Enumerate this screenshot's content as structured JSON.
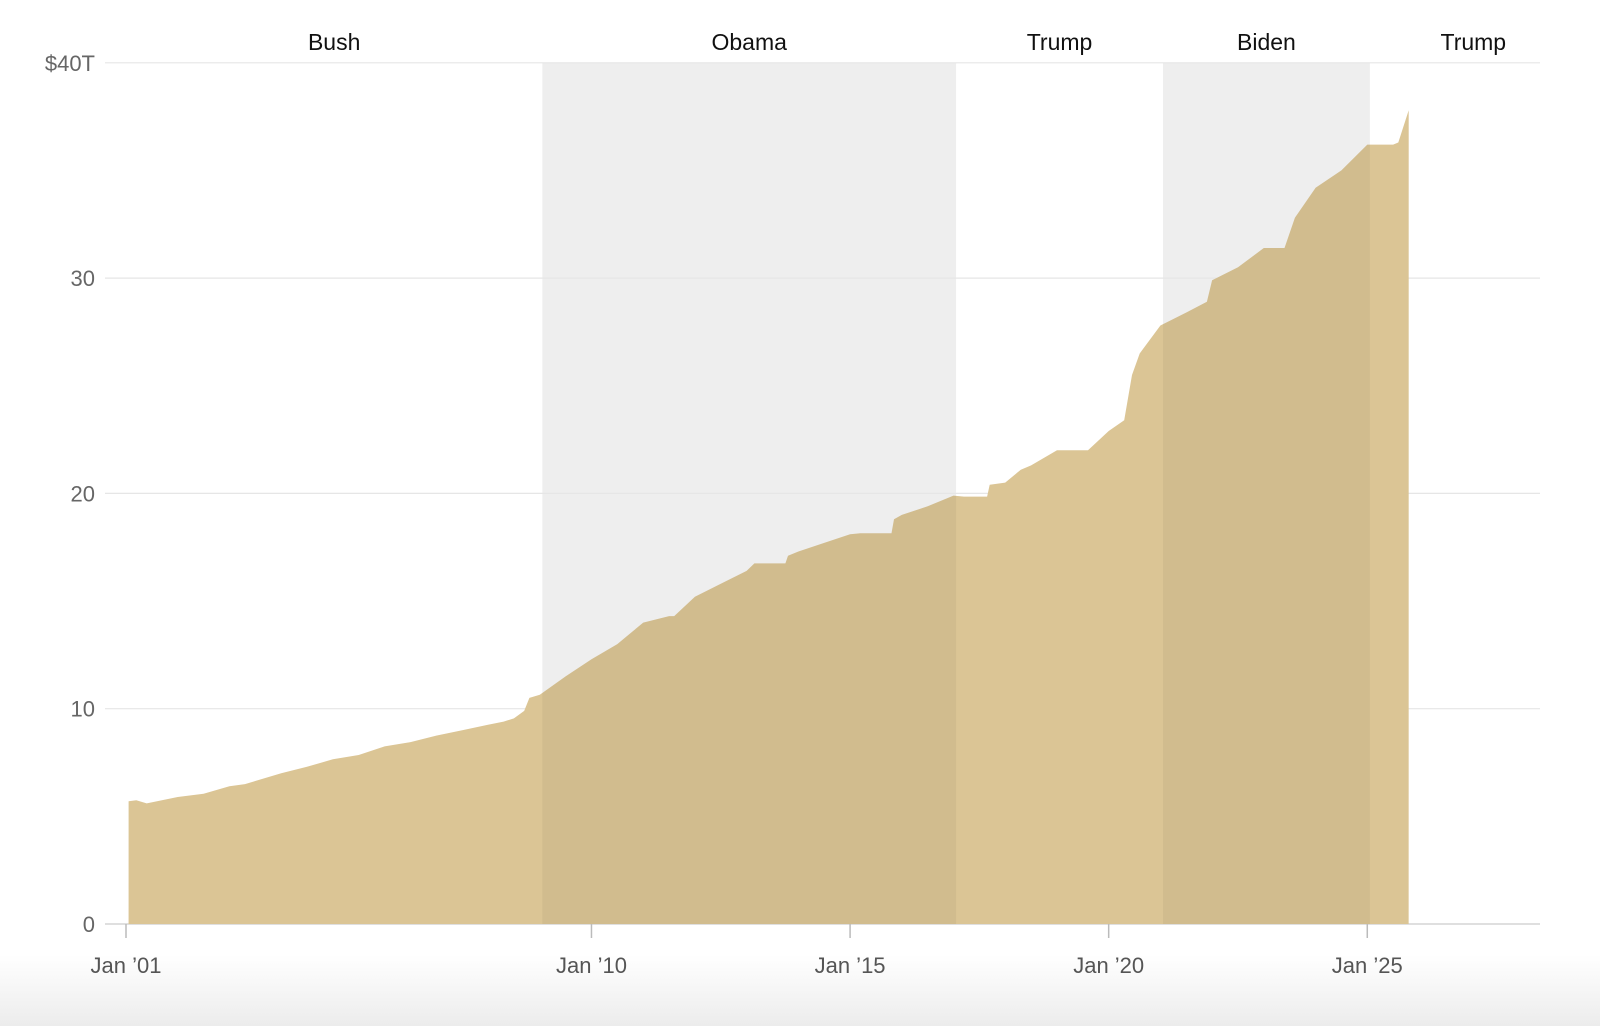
{
  "chart_data": {
    "type": "area",
    "title": "",
    "xlabel": "",
    "ylabel": "",
    "ylim": [
      0,
      40
    ],
    "xlim": [
      "2001-01",
      "2028-05"
    ],
    "y_ticks": [
      {
        "value": 0,
        "label": "0"
      },
      {
        "value": 10,
        "label": "10"
      },
      {
        "value": 20,
        "label": "20"
      },
      {
        "value": 30,
        "label": "30"
      },
      {
        "value": 40,
        "label": "$40T"
      }
    ],
    "x_ticks": [
      {
        "value": 2001,
        "label": "Jan ’01"
      },
      {
        "value": 2010,
        "label": "Jan ’10"
      },
      {
        "value": 2015,
        "label": "Jan ’15"
      },
      {
        "value": 2020,
        "label": "Jan ’20"
      },
      {
        "value": 2025,
        "label": "Jan ’25"
      }
    ],
    "grid": true,
    "colors": {
      "area": "#dbc595",
      "shade": "#eeeeee",
      "grid": "#e6e6e6"
    },
    "presidents": [
      {
        "name": "Bush",
        "start": 2001.0,
        "end": 2009.05,
        "shaded": false
      },
      {
        "name": "Obama",
        "start": 2009.05,
        "end": 2017.05,
        "shaded": true
      },
      {
        "name": "Trump",
        "start": 2017.05,
        "end": 2021.05,
        "shaded": false
      },
      {
        "name": "Biden",
        "start": 2021.05,
        "end": 2025.05,
        "shaded": true
      },
      {
        "name": "Trump",
        "start": 2025.05,
        "end": 2029.05,
        "shaded": false
      }
    ],
    "series": [
      {
        "x": [
          2001.05,
          2001.2,
          2001.4,
          2002.0,
          2002.5,
          2003.0,
          2003.3,
          2004.0,
          2004.5,
          2005.0,
          2005.5,
          2006.0,
          2006.5,
          2007.0,
          2007.5,
          2008.0,
          2008.3,
          2008.5,
          2008.7,
          2008.8,
          2009.0,
          2009.5,
          2010.0,
          2010.5,
          2011.0,
          2011.5,
          2011.6,
          2012.0,
          2012.5,
          2013.0,
          2013.15,
          2013.75,
          2013.8,
          2014.0,
          2014.5,
          2015.0,
          2015.2,
          2015.8,
          2015.85,
          2016.0,
          2016.5,
          2017.0,
          2017.2,
          2017.65,
          2017.7,
          2018.0,
          2018.3,
          2018.5,
          2019.0,
          2019.4,
          2019.6,
          2020.0,
          2020.3,
          2020.45,
          2020.6,
          2021.0,
          2021.5,
          2021.9,
          2022.0,
          2022.5,
          2023.0,
          2023.4,
          2023.6,
          2024.0,
          2024.5,
          2025.0,
          2025.5,
          2025.6,
          2025.8
        ],
        "y": [
          5.7,
          5.75,
          5.6,
          5.9,
          6.05,
          6.4,
          6.5,
          7.0,
          7.3,
          7.65,
          7.85,
          8.25,
          8.45,
          8.75,
          9.0,
          9.25,
          9.4,
          9.55,
          9.9,
          10.5,
          10.65,
          11.5,
          12.3,
          13.0,
          14.0,
          14.3,
          14.3,
          15.2,
          15.8,
          16.4,
          16.75,
          16.75,
          17.1,
          17.3,
          17.7,
          18.1,
          18.15,
          18.15,
          18.8,
          19.0,
          19.4,
          19.9,
          19.85,
          19.85,
          20.4,
          20.5,
          21.1,
          21.3,
          22.0,
          22.0,
          22.0,
          22.9,
          23.4,
          25.5,
          26.5,
          27.8,
          28.4,
          28.9,
          29.9,
          30.5,
          31.4,
          31.4,
          32.8,
          34.2,
          35.0,
          36.2,
          36.2,
          36.3,
          37.8
        ]
      }
    ]
  }
}
